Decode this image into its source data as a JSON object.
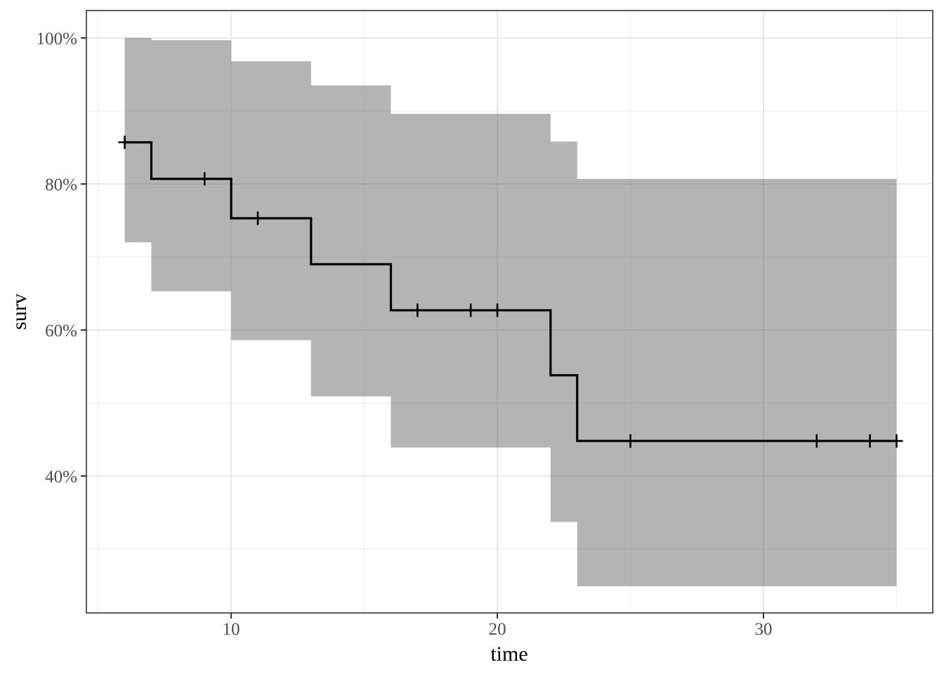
{
  "chart_data": {
    "type": "line",
    "subtype": "kaplan-meier-step-with-confidence-ribbon",
    "title": "",
    "xlabel": "time",
    "ylabel": "surv",
    "x_axis": {
      "label": "time",
      "range": [
        4.56,
        36.36
      ],
      "major_ticks": [
        {
          "value": 10,
          "label": "10"
        },
        {
          "value": 20,
          "label": "20"
        },
        {
          "value": 30,
          "label": "30"
        }
      ],
      "minor_ticks": [
        5,
        15,
        25,
        35
      ]
    },
    "y_axis": {
      "label": "surv",
      "range": [
        0.2125,
        1.0375
      ],
      "major_ticks": [
        {
          "value": 1.0,
          "label": "100%"
        },
        {
          "value": 0.8,
          "label": "80%"
        },
        {
          "value": 0.6,
          "label": "60%"
        },
        {
          "value": 0.4,
          "label": "40%"
        }
      ],
      "minor_ticks": [
        0.9,
        0.7,
        0.5,
        0.3
      ]
    },
    "grid": {
      "major": true,
      "minor": true
    },
    "legend": "none",
    "series": [
      {
        "name": "survival-estimate",
        "style": "step",
        "step_times": [
          6,
          7,
          10,
          13,
          16,
          22,
          23
        ],
        "step_values": [
          0.857,
          0.807,
          0.753,
          0.69,
          0.627,
          0.538,
          0.448
        ],
        "end_time": 35
      },
      {
        "name": "confidence-ribbon-95pct",
        "style": "step-ribbon",
        "step_times": [
          6,
          7,
          10,
          13,
          16,
          22,
          23
        ],
        "upper_values": [
          1.0,
          0.997,
          0.968,
          0.935,
          0.896,
          0.858,
          0.807
        ],
        "lower_values": [
          0.72,
          0.653,
          0.586,
          0.509,
          0.439,
          0.337,
          0.249
        ],
        "end_time": 35
      }
    ],
    "censor_marks": [
      {
        "time": 6,
        "surv": 0.857
      },
      {
        "time": 9,
        "surv": 0.807
      },
      {
        "time": 11,
        "surv": 0.753
      },
      {
        "time": 17,
        "surv": 0.627
      },
      {
        "time": 19,
        "surv": 0.627
      },
      {
        "time": 20,
        "surv": 0.627
      },
      {
        "time": 25,
        "surv": 0.448
      },
      {
        "time": 32,
        "surv": 0.448
      },
      {
        "time": 34,
        "surv": 0.448
      },
      {
        "time": 35,
        "surv": 0.448
      }
    ],
    "colors": {
      "step_line": "#000000",
      "censor_mark": "#000000",
      "ribbon_fill": "#6a6a6a",
      "ribbon_opacity": 0.5,
      "grid_major": "#e5e5e5",
      "grid_minor": "#efefef",
      "panel_border": "#333333",
      "axis_tick": "#333333",
      "tick_label_color": "#4d4d4d",
      "axis_title_color": "#000000",
      "panel_background": "#ffffff"
    }
  }
}
